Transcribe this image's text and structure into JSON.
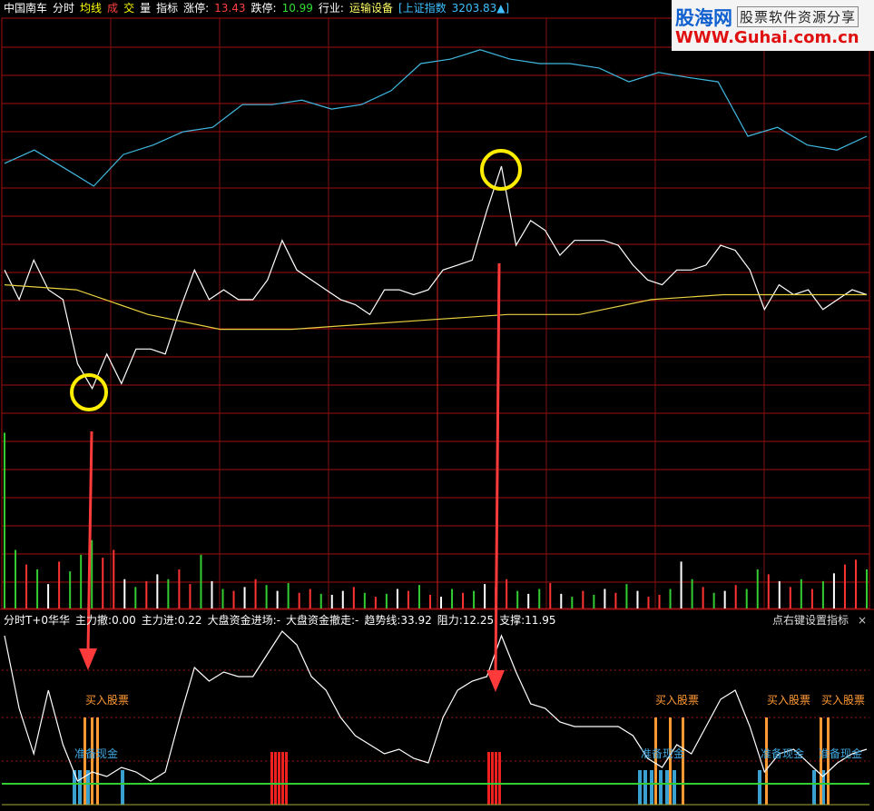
{
  "header": {
    "items": [
      {
        "text": "中国南车",
        "color": "#ffffff"
      },
      {
        "text": "分时",
        "color": "#ffffff"
      },
      {
        "text": "均线",
        "color": "#ffff00"
      },
      {
        "text": "成",
        "color": "#ff4040"
      },
      {
        "text": "交",
        "color": "#ffff00"
      },
      {
        "text": "量",
        "color": "#ffffff"
      },
      {
        "text": "指标",
        "color": "#ffffff"
      },
      {
        "text": "涨停:",
        "color": "#ffffff"
      },
      {
        "text": "13.43",
        "color": "#ff4040"
      },
      {
        "text": "跌停:",
        "color": "#ffffff"
      },
      {
        "text": "10.99",
        "color": "#33dd33"
      },
      {
        "text": "行业:",
        "color": "#ffffff"
      },
      {
        "text": "运输设备",
        "color": "#ffff66"
      },
      {
        "text": "[上证指数",
        "color": "#40c0ff"
      },
      {
        "text": "3203.83▲]",
        "color": "#40c0ff"
      }
    ]
  },
  "watermark": {
    "brand": "股海网",
    "slogan": "股票软件资源分享",
    "url": "WWW.Guhai.com.cn"
  },
  "indicator_header": {
    "items": [
      "分时T+0华华",
      "主力撤:0.00",
      "主力进:0.22",
      "大盘资金进场:-",
      "大盘资金撤走:-",
      "趋势线:33.92",
      "阻力:12.25",
      "支撑:11.95"
    ],
    "hint": "点右键设置指标",
    "close": "×"
  },
  "signals": {
    "buy_labels": [
      "买入股票",
      "买入股票",
      "买入股票",
      "买入股票"
    ],
    "cash_labels": [
      "准备现金",
      "准备现金",
      "准备现金",
      "准备现金"
    ]
  },
  "chart_data": [
    {
      "type": "line",
      "ylim": [
        11.8,
        12.6
      ],
      "series": [
        {
          "color": "#ffffff",
          "values": [
            12.09,
            12.03,
            12.11,
            12.05,
            12.03,
            11.9,
            11.85,
            11.92,
            11.86,
            11.93,
            11.93,
            11.92,
            12.01,
            12.09,
            12.03,
            12.05,
            12.03,
            12.03,
            12.07,
            12.15,
            12.09,
            12.07,
            12.05,
            12.03,
            12.02,
            12.0,
            12.05,
            12.05,
            12.04,
            12.05,
            12.09,
            12.1,
            12.11,
            12.21,
            12.3,
            12.14,
            12.19,
            12.17,
            12.12,
            12.15,
            12.15,
            12.15,
            12.14,
            12.1,
            12.07,
            12.06,
            12.09,
            12.09,
            12.1,
            12.14,
            12.13,
            12.09,
            12.01,
            12.06,
            12.04,
            12.05,
            12.01,
            12.03,
            12.05,
            12.04
          ]
        },
        {
          "color": "#e8d040",
          "values": [
            12.06,
            12.05,
            12.0,
            11.97,
            11.97,
            11.98,
            11.99,
            12.0,
            12.0,
            12.03,
            12.04,
            12.04,
            12.04
          ]
        }
      ]
    },
    {
      "type": "line",
      "ylim": [
        3150,
        3230
      ],
      "series": [
        {
          "color": "#40b8e0",
          "values": [
            3200.6,
            3203.3,
            3199.7,
            3196.0,
            3202.4,
            3204.3,
            3207.0,
            3207.9,
            3212.5,
            3212.5,
            3213.4,
            3211.6,
            3212.5,
            3215.3,
            3220.8,
            3221.7,
            3223.6,
            3221.7,
            3220.8,
            3220.8,
            3219.9,
            3217.1,
            3219.0,
            3218.0,
            3217.1,
            3206.1,
            3207.9,
            3204.3,
            3203.3,
            3206.1
          ]
        }
      ]
    },
    {
      "type": "bar",
      "ylim": [
        0,
        200
      ],
      "palette": {
        "r": "#ff3333",
        "g": "#33cc33",
        "w": "#ffffff"
      },
      "directions": "ggrgwrgggrrwgrwgrrgwgrwrgwgrrgwwrgrgwrgrwgrgwrrgwgrwgrgwrgwrrgwgrgwrggrwrgrgwrrg",
      "values": [
        180,
        60,
        45,
        40,
        25,
        48,
        38,
        55,
        70,
        52,
        60,
        30,
        22,
        28,
        35,
        30,
        40,
        25,
        55,
        28,
        20,
        18,
        22,
        30,
        24,
        18,
        26,
        16,
        20,
        15,
        14,
        18,
        22,
        16,
        12,
        15,
        20,
        18,
        24,
        14,
        12,
        20,
        16,
        18,
        25,
        22,
        30,
        18,
        15,
        20,
        26,
        15,
        12,
        18,
        14,
        20,
        16,
        25,
        18,
        12,
        14,
        20,
        48,
        30,
        22,
        16,
        18,
        24,
        20,
        40,
        35,
        28,
        22,
        30,
        20,
        28,
        36,
        45,
        50,
        40
      ]
    },
    {
      "type": "line",
      "ylim": [
        0,
        100
      ],
      "series": [
        {
          "color": "#ffffff",
          "values": [
            95,
            55,
            30,
            65,
            35,
            15,
            20,
            17.5,
            22.5,
            20,
            15,
            20,
            50,
            77.5,
            70,
            75,
            72.5,
            72.5,
            85,
            97.5,
            90,
            72.5,
            65,
            50,
            40,
            35,
            30,
            32.5,
            27.5,
            25,
            50,
            65,
            70,
            72.5,
            95,
            75,
            57.5,
            55,
            47.5,
            45,
            45,
            45,
            45,
            40,
            27.5,
            22.5,
            35,
            30,
            45,
            60,
            65,
            45,
            20,
            30,
            32.5,
            25,
            17.5,
            25,
            30,
            32.5
          ]
        }
      ]
    }
  ]
}
